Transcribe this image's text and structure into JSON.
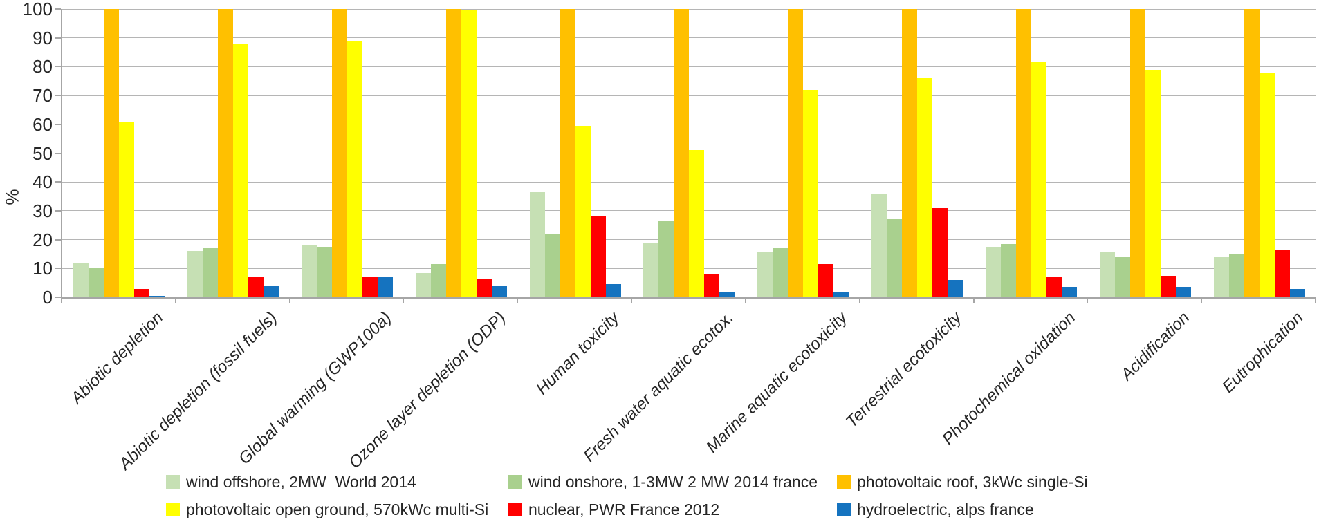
{
  "chart_data": {
    "type": "bar",
    "title": "",
    "xlabel": "",
    "ylabel": "%",
    "ylim": [
      0,
      100
    ],
    "yticks": [
      0,
      10,
      20,
      30,
      40,
      50,
      60,
      70,
      80,
      90,
      100
    ],
    "grid": true,
    "legend_position": "bottom",
    "categories": [
      "Abiotic depletion",
      "Abiotic depletion (fossil fuels)",
      "Global warming (GWP100a)",
      "Ozone layer depletion (ODP)",
      "Human toxicity",
      "Fresh water aquatic ecotox.",
      "Marine aquatic ecotoxicity",
      "Terrestrial ecotoxicity",
      "Photochemical oxidation",
      "Acidification",
      "Eutrophication"
    ],
    "series": [
      {
        "name": "wind offshore, 2MW  World 2014",
        "color": "#c6e0b4",
        "values": [
          12,
          16,
          18,
          8.5,
          36.5,
          19,
          15.5,
          36,
          17.5,
          15.5,
          14
        ]
      },
      {
        "name": "wind onshore, 1-3MW 2 MW 2014 france",
        "color": "#a9d08e",
        "values": [
          10,
          17,
          17.5,
          11.5,
          22,
          26.5,
          17,
          27,
          18.5,
          14,
          15
        ]
      },
      {
        "name": "photovoltaic roof, 3kWc single-Si",
        "color": "#ffc000",
        "values": [
          100,
          100,
          100,
          100,
          100,
          100,
          100,
          100,
          100,
          100,
          100
        ]
      },
      {
        "name": "photovoltaic open ground, 570kWc multi-Si",
        "color": "#ffff00",
        "values": [
          61,
          88,
          89,
          99.5,
          59.5,
          51,
          72,
          76,
          81.5,
          79,
          78
        ]
      },
      {
        "name": "nuclear, PWR France 2012",
        "color": "#ff0000",
        "values": [
          3,
          7,
          7,
          6.5,
          28,
          8,
          11.5,
          31,
          7,
          7.5,
          16.5
        ]
      },
      {
        "name": "hydroelectric, alps france",
        "color": "#1573bf",
        "values": [
          0.5,
          4,
          7,
          4,
          4.5,
          2,
          2,
          6,
          3.5,
          3.5,
          3
        ]
      }
    ]
  }
}
